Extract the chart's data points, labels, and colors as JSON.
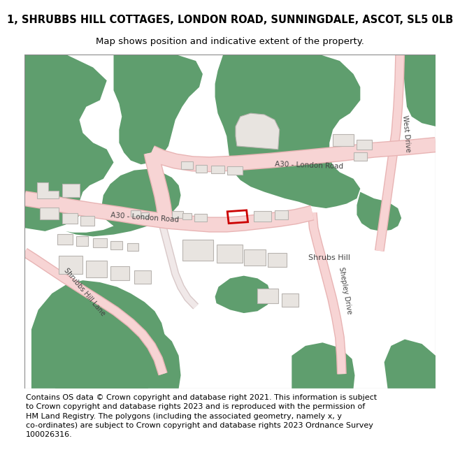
{
  "title_line1": "1, SHRUBBS HILL COTTAGES, LONDON ROAD, SUNNINGDALE, ASCOT, SL5 0LB",
  "title_line2": "Map shows position and indicative extent of the property.",
  "footer_lines": [
    "Contains OS data © Crown copyright and database right 2021. This information is subject",
    "to Crown copyright and database rights 2023 and is reproduced with the permission of",
    "HM Land Registry. The polygons (including the associated geometry, namely x, y",
    "co-ordinates) are subject to Crown copyright and database rights 2023 Ordnance Survey",
    "100026316."
  ],
  "bg_color": "#ffffff",
  "map_bg": "#ffffff",
  "green_color": "#5f9e6e",
  "road_fill": "#f7d4d4",
  "road_edge": "#e8b4b4",
  "building_fill": "#e8e4e0",
  "building_edge": "#b8b4b0",
  "highlight_color": "#cc0000",
  "label_color": "#444444",
  "title_fontsize": 10.5,
  "subtitle_fontsize": 9.5,
  "footer_fontsize": 8.0
}
